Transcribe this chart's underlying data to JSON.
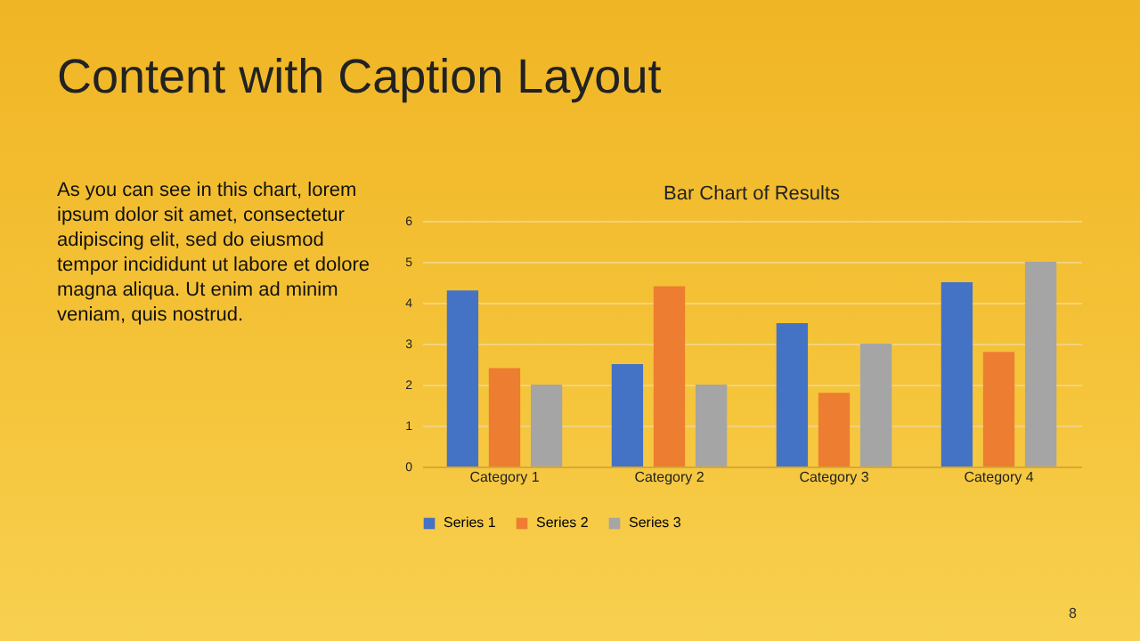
{
  "chart_data": {
    "type": "bar",
    "title": "Bar Chart of Results",
    "categories": [
      "Category 1",
      "Category 2",
      "Category 3",
      "Category 4"
    ],
    "series": [
      {
        "name": "Series 1",
        "color": "#4472c4",
        "values": [
          4.3,
          2.5,
          3.5,
          4.5
        ]
      },
      {
        "name": "Series 2",
        "color": "#ed7d31",
        "values": [
          2.4,
          4.4,
          1.8,
          2.8
        ]
      },
      {
        "name": "Series 3",
        "color": "#a5a5a5",
        "values": [
          2,
          2,
          3,
          5
        ]
      }
    ],
    "ylim": [
      0,
      6
    ],
    "yticks": [
      0,
      1,
      2,
      3,
      4,
      5,
      6
    ],
    "grid": "y",
    "legend": "bottom",
    "annotations": [
      "Content with Caption Layout",
      "As you can see in this chart, lorem ipsum dolor sit amet, consectetur adipiscing elit, sed do eiusmod tempor incididunt ut labore et dolore magna aliqua. Ut enim ad minim veniam, quis nostrud.",
      "8"
    ]
  }
}
